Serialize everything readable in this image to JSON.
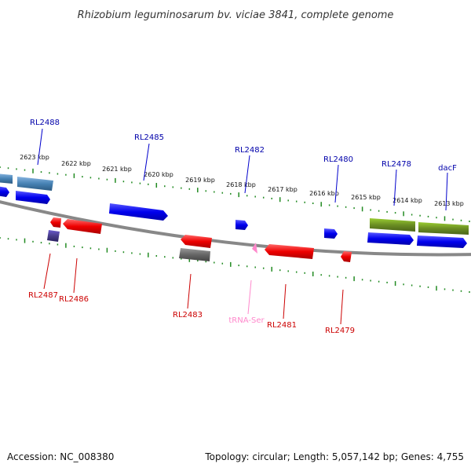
{
  "title": "Rhizobium leguminosarum bv. viciae 3841, complete genome",
  "footer": {
    "accession": "Accession: NC_008380",
    "summary": "Topology: circular; Length: 5,057,142 bp; Genes: 4,755"
  },
  "colors": {
    "forward_cds": "#0000ee",
    "reverse_cds": "#ee0000",
    "forward_label": "#0000aa",
    "reverse_label": "#cc0000",
    "trna": "#ff88cc",
    "olive_feature": "#6b8e23",
    "steel_feature": "#4682b4",
    "grey_feature": "#666666",
    "backbone": "#888888",
    "ticks": "#228b22"
  },
  "kbp_labels": [
    "2623 kbp",
    "2622 kbp",
    "2621 kbp",
    "2620 kbp",
    "2619 kbp",
    "2618 kbp",
    "2617 kbp",
    "2616 kbp",
    "2615 kbp",
    "2614 kbp",
    "2613 kbp"
  ],
  "forward_labels": [
    "RL2488",
    "RL2485",
    "RL2482",
    "RL2480",
    "RL2478",
    "dacF"
  ],
  "reverse_labels": [
    "RL2487",
    "RL2486",
    "RL2483",
    "tRNA-Ser",
    "RL2481",
    "RL2479"
  ]
}
